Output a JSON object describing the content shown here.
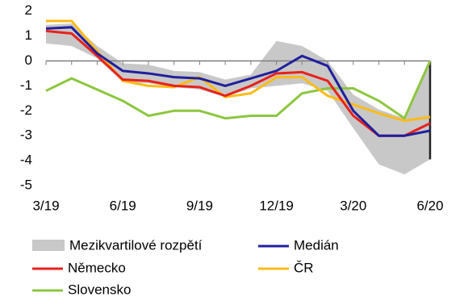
{
  "chart_data": {
    "type": "line",
    "categories": [
      "3/19",
      null,
      null,
      "6/19",
      null,
      null,
      "9/19",
      null,
      null,
      "12/19",
      null,
      null,
      "3/20",
      null,
      null,
      "6/20"
    ],
    "range": {
      "name": "Mezikvartilové rozpětí",
      "color": "#c8c8c8",
      "low": [
        0.7,
        0.6,
        0.1,
        -0.85,
        -0.9,
        -1.05,
        -1.15,
        -1.45,
        -1.1,
        -1.0,
        -0.9,
        -1.2,
        -2.7,
        -4.15,
        -4.55,
        -3.95
      ],
      "high": [
        1.45,
        1.5,
        0.6,
        -0.1,
        -0.15,
        -0.4,
        -0.45,
        -0.75,
        -0.55,
        0.8,
        0.6,
        0.0,
        -1.35,
        -1.95,
        -2.3,
        0.0
      ]
    },
    "series": [
      {
        "name": "Medián",
        "color": "#1f1f9e",
        "values": [
          1.3,
          1.35,
          0.3,
          -0.4,
          -0.5,
          -0.65,
          -0.7,
          -1.0,
          -0.7,
          -0.4,
          0.2,
          -0.2,
          -2.0,
          -3.0,
          -3.0,
          -2.8
        ]
      },
      {
        "name": "Německo",
        "color": "#e8211b",
        "values": [
          1.2,
          1.1,
          0.2,
          -0.75,
          -0.8,
          -1.0,
          -1.05,
          -1.4,
          -1.0,
          -0.5,
          -0.45,
          -0.8,
          -2.2,
          -3.0,
          -3.0,
          -2.5
        ]
      },
      {
        "name": "ČR",
        "color": "#fbbb18",
        "values": [
          1.6,
          1.6,
          0.4,
          -0.8,
          -1.0,
          -1.05,
          -0.65,
          -1.45,
          -1.3,
          -0.65,
          -0.65,
          -1.4,
          -1.75,
          -2.1,
          -2.4,
          -2.25
        ]
      },
      {
        "name": "Slovensko",
        "color": "#8cc63f",
        "values": [
          -1.2,
          -0.7,
          -1.15,
          -1.6,
          -2.2,
          -2.0,
          -2.0,
          -2.3,
          -2.2,
          -2.2,
          -1.3,
          -1.1,
          -1.1,
          -1.6,
          -2.3,
          0.0
        ]
      }
    ],
    "ylim": [
      -5,
      2
    ],
    "yticks": [
      -5,
      -4,
      -3,
      -2,
      -1,
      0,
      1,
      2
    ]
  }
}
